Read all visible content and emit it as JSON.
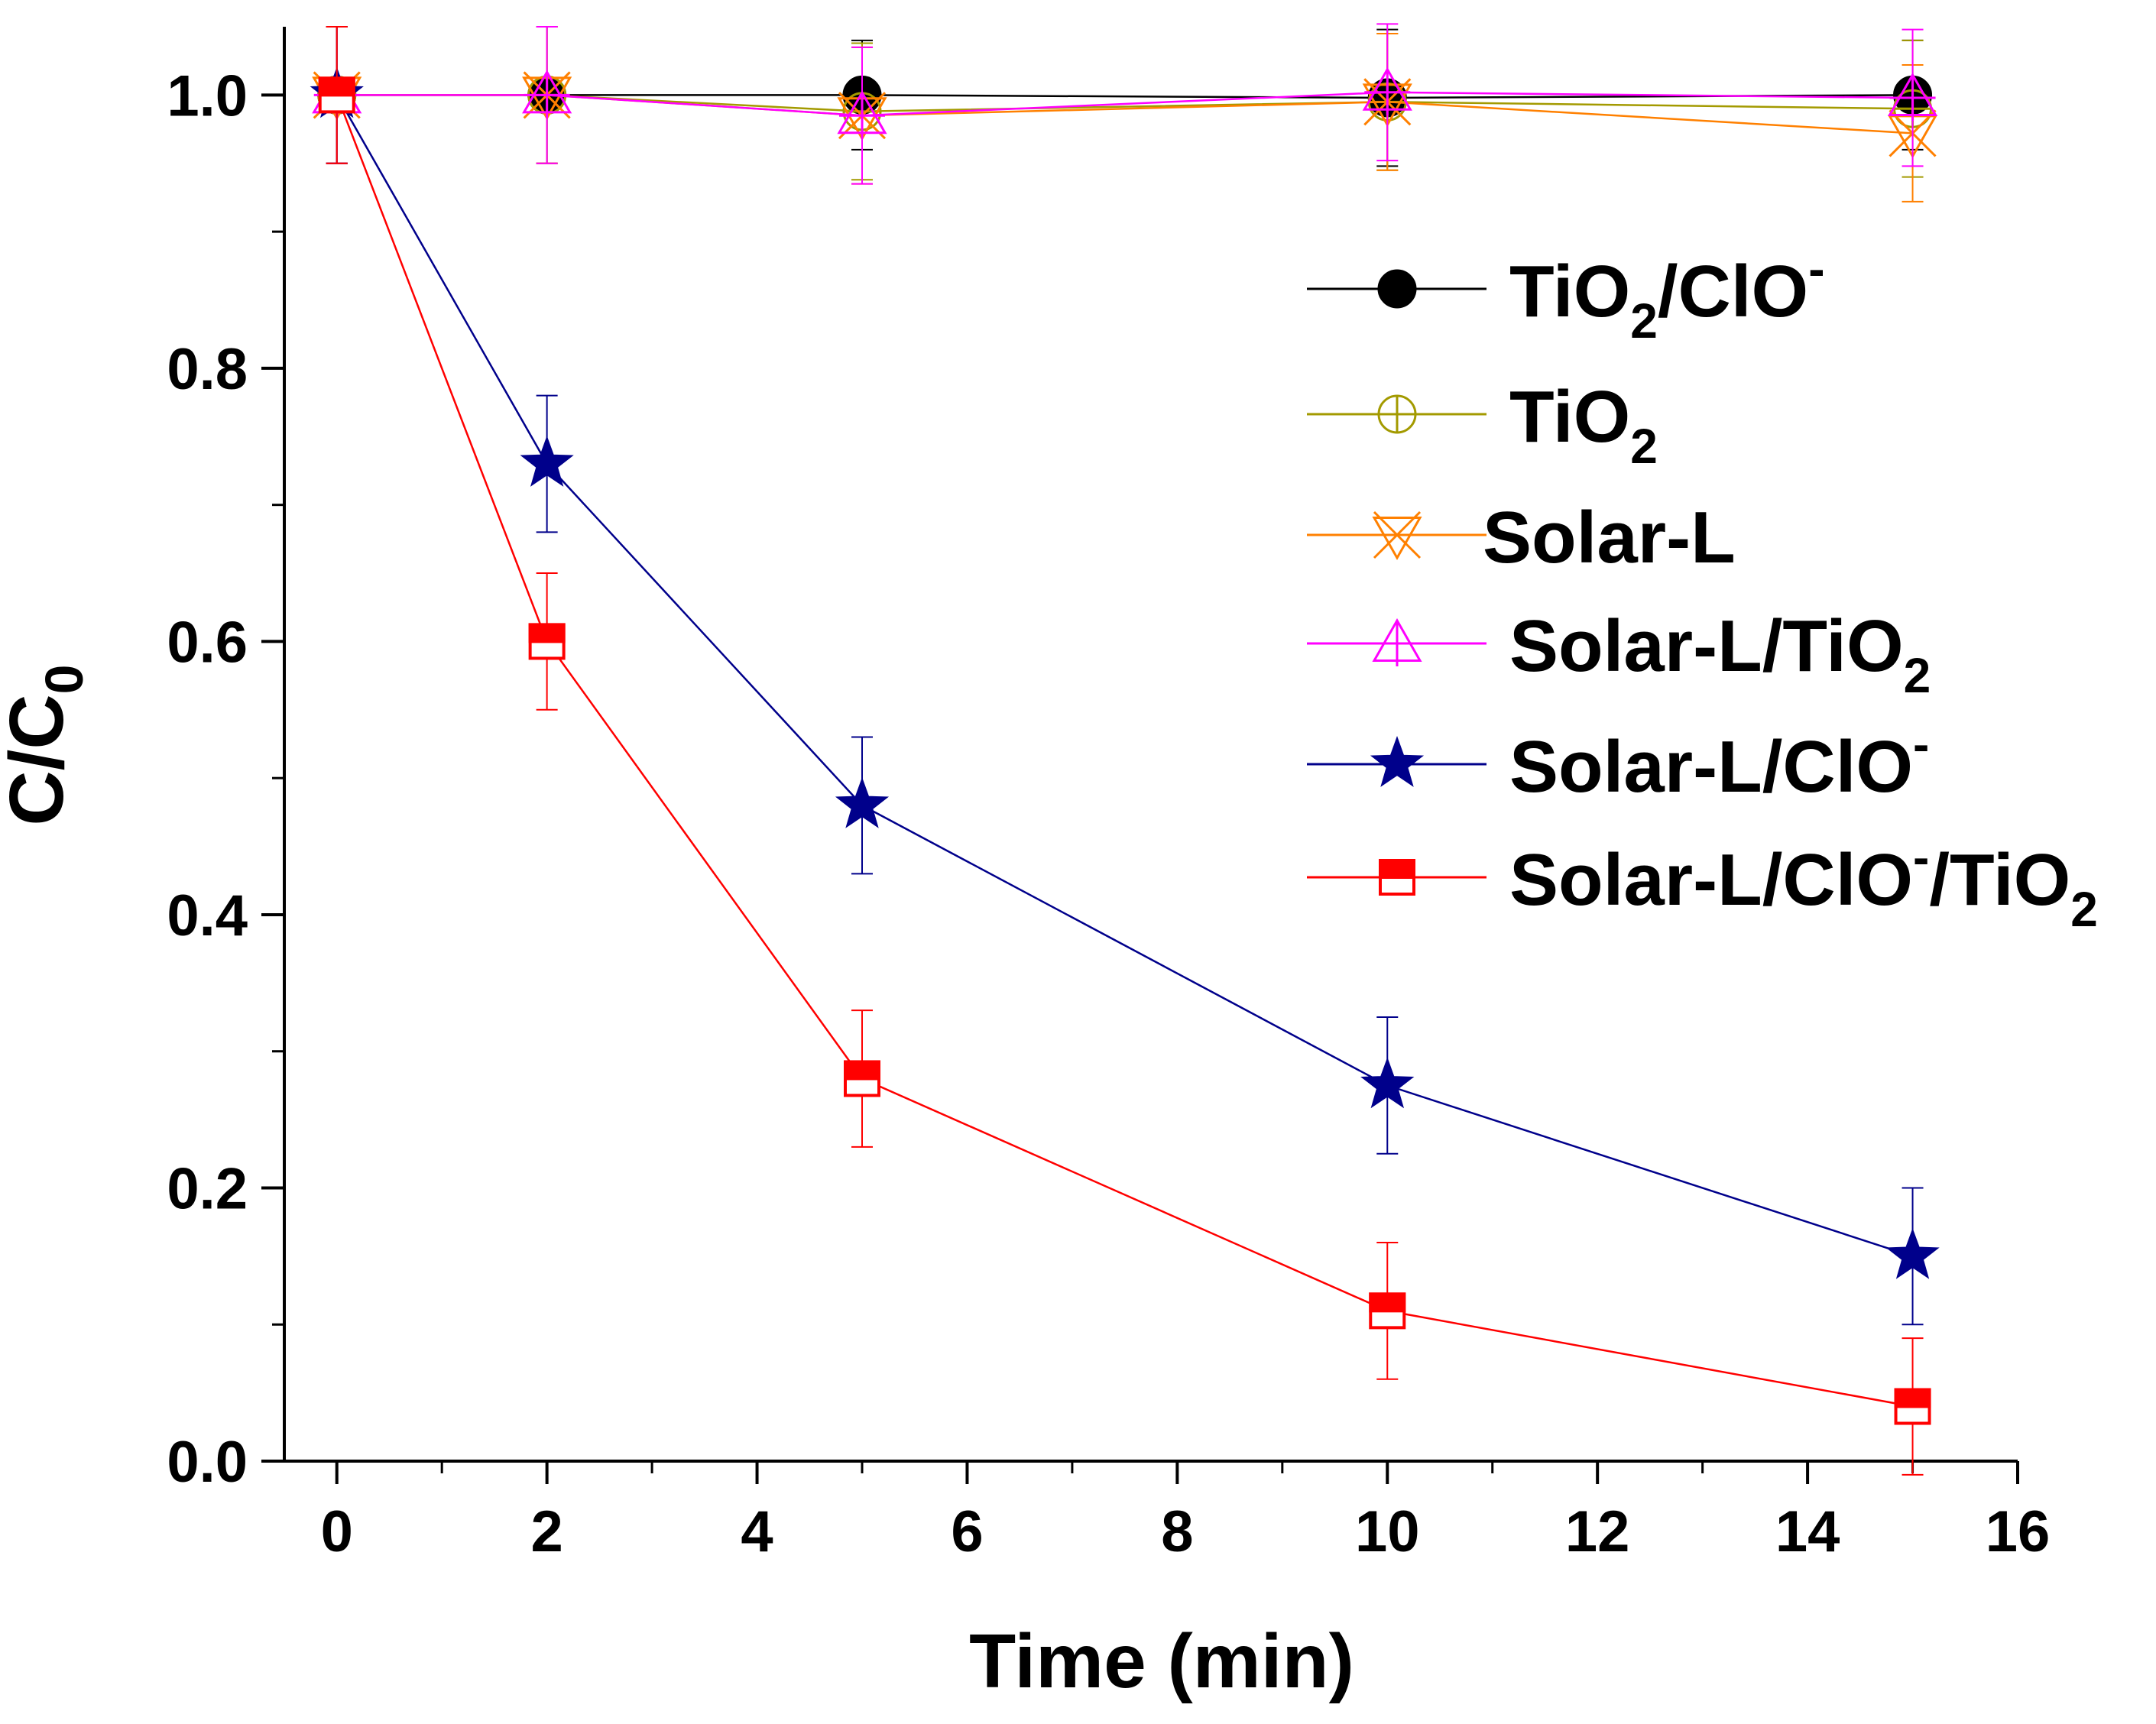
{
  "chart_data": {
    "type": "line",
    "title": "",
    "xlabel": "Time (min)",
    "ylabel": {
      "main": "C/C",
      "sub": "0"
    },
    "xlim": [
      -0.5,
      16
    ],
    "ylim": [
      0,
      1.05
    ],
    "x_ticks": [
      "0",
      "2",
      "4",
      "6",
      "8",
      "10",
      "12",
      "14",
      "16"
    ],
    "y_ticks": [
      "0.0",
      "0.2",
      "0.4",
      "0.6",
      "0.8",
      "1.0"
    ],
    "legend_position": "right",
    "x": [
      0,
      2,
      5,
      10,
      15
    ],
    "series": [
      {
        "name": "TiO2/ClO-",
        "legend": {
          "base": "TiO",
          "sub": "2",
          "mid": "/ClO",
          "sup": "-",
          "end": ""
        },
        "color": "#000000",
        "marker": "circle-filled",
        "values": [
          1.0,
          1.0,
          1.0,
          0.998,
          1.0
        ],
        "errors": [
          0.05,
          0.05,
          0.04,
          0.05,
          0.04
        ]
      },
      {
        "name": "TiO2",
        "legend": {
          "base": "TiO",
          "sub": "2",
          "mid": "",
          "sup": "",
          "end": ""
        },
        "color": "#a39a00",
        "marker": "circle-plus",
        "values": [
          1.0,
          1.0,
          0.988,
          0.995,
          0.99
        ],
        "errors": [
          0.05,
          0.05,
          0.05,
          0.05,
          0.05
        ]
      },
      {
        "name": "Solar-L",
        "legend": {
          "base": "Solar-L",
          "sub": "",
          "mid": "",
          "sup": "",
          "end": ""
        },
        "color": "#ff8000",
        "marker": "triangle-down-x",
        "values": [
          1.0,
          1.0,
          0.985,
          0.995,
          0.972
        ],
        "errors": [
          0.05,
          0.05,
          0.05,
          0.05,
          0.05
        ]
      },
      {
        "name": "Solar-L/TiO2",
        "legend": {
          "base": "Solar-L/TiO",
          "sub": "2",
          "mid": "",
          "sup": "",
          "end": ""
        },
        "color": "#ff00ff",
        "marker": "triangle-up-plus",
        "values": [
          1.0,
          1.0,
          0.985,
          1.002,
          0.998
        ],
        "errors": [
          0.05,
          0.05,
          0.05,
          0.05,
          0.05
        ]
      },
      {
        "name": "Solar-L/ClO-",
        "legend": {
          "base": "Solar-L/ClO",
          "sub": "",
          "mid": "",
          "sup": "-",
          "end": ""
        },
        "color": "#00008b",
        "marker": "star",
        "values": [
          1.0,
          0.73,
          0.48,
          0.275,
          0.15
        ],
        "errors": [
          0.05,
          0.05,
          0.05,
          0.05,
          0.05
        ]
      },
      {
        "name": "Solar-L/ClO-/TiO2",
        "legend": {
          "base": "Solar-L/ClO",
          "sub": "",
          "mid": "",
          "sup": "-",
          "end": "/TiO",
          "sub2": "2"
        },
        "color": "#ff0000",
        "marker": "square-half",
        "values": [
          1.0,
          0.6,
          0.28,
          0.11,
          0.04
        ],
        "errors": [
          0.05,
          0.05,
          0.05,
          0.05,
          0.05
        ]
      }
    ]
  }
}
